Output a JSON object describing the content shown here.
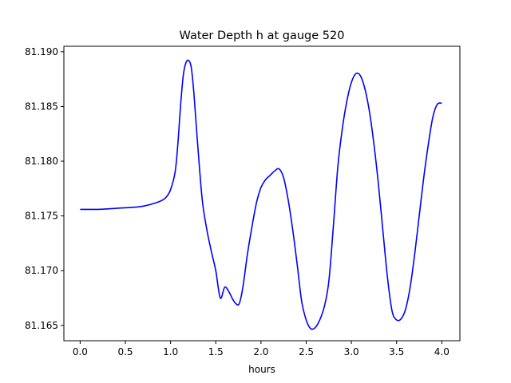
{
  "chart_data": {
    "type": "line",
    "title": "Water Depth h at gauge 520",
    "xlabel": "hours",
    "ylabel": "",
    "xlim": [
      -0.18,
      4.2
    ],
    "ylim": [
      81.1636,
      81.1905
    ],
    "xticks": [
      0.0,
      0.5,
      1.0,
      1.5,
      2.0,
      2.5,
      3.0,
      3.5,
      4.0
    ],
    "xtick_labels": [
      "0.0",
      "0.5",
      "1.0",
      "1.5",
      "2.0",
      "2.5",
      "3.0",
      "3.5",
      "4.0"
    ],
    "yticks": [
      81.165,
      81.17,
      81.175,
      81.18,
      81.185,
      81.19
    ],
    "ytick_labels": [
      "81.165",
      "81.170",
      "81.175",
      "81.180",
      "81.185",
      "81.190"
    ],
    "grid": false,
    "series": [
      {
        "color": "#0000ff",
        "x": [
          0.0,
          0.2,
          0.4,
          0.6,
          0.7,
          0.8,
          0.9,
          0.95,
          1.0,
          1.05,
          1.08,
          1.11,
          1.14,
          1.17,
          1.2,
          1.23,
          1.26,
          1.3,
          1.35,
          1.4,
          1.45,
          1.5,
          1.55,
          1.6,
          1.65,
          1.68,
          1.72,
          1.76,
          1.8,
          1.85,
          1.9,
          1.95,
          2.0,
          2.05,
          2.1,
          2.15,
          2.2,
          2.25,
          2.3,
          2.35,
          2.4,
          2.45,
          2.5,
          2.55,
          2.6,
          2.65,
          2.7,
          2.75,
          2.8,
          2.85,
          2.9,
          2.95,
          3.0,
          3.05,
          3.1,
          3.15,
          3.2,
          3.25,
          3.3,
          3.35,
          3.4,
          3.45,
          3.5,
          3.55,
          3.6,
          3.65,
          3.7,
          3.75,
          3.8,
          3.85,
          3.9,
          3.95,
          4.0
        ],
        "y": [
          81.1756,
          81.1756,
          81.1757,
          81.1758,
          81.1759,
          81.1761,
          81.1764,
          81.1767,
          81.1774,
          81.179,
          81.1815,
          81.185,
          81.1878,
          81.189,
          81.1892,
          81.1885,
          81.186,
          81.1815,
          81.1765,
          81.1738,
          81.1718,
          81.17,
          81.1675,
          81.1685,
          81.168,
          81.1675,
          81.167,
          81.167,
          81.1685,
          81.1715,
          81.174,
          81.1762,
          81.1776,
          81.1783,
          81.1787,
          81.1791,
          81.1793,
          81.1785,
          81.1765,
          81.1738,
          81.1706,
          81.1672,
          81.1655,
          81.1647,
          81.1648,
          81.1655,
          81.1667,
          81.169,
          81.174,
          81.1795,
          81.183,
          81.1855,
          81.1872,
          81.188,
          81.1878,
          81.1866,
          81.1845,
          81.1815,
          81.1778,
          81.1735,
          81.1693,
          81.1663,
          81.1655,
          81.1656,
          81.1665,
          81.1685,
          81.1715,
          81.175,
          81.1785,
          81.1815,
          81.184,
          81.1852,
          81.1853
        ]
      }
    ]
  }
}
